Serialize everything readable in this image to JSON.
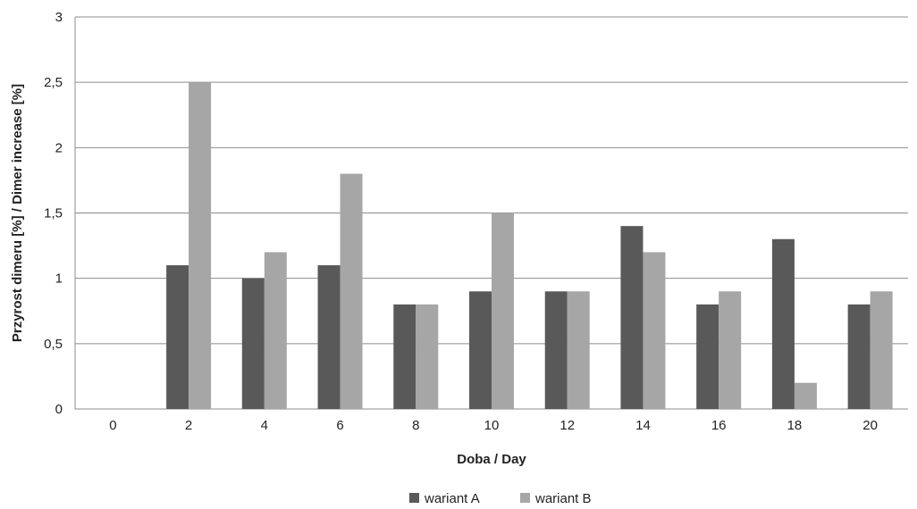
{
  "chart_data": {
    "type": "bar",
    "title": "",
    "xlabel": "Doba / Day",
    "ylabel": "Przyrost  dimeru [%] / Dimer increase [%]",
    "categories": [
      "0",
      "2",
      "4",
      "6",
      "8",
      "10",
      "12",
      "14",
      "16",
      "18",
      "20"
    ],
    "series": [
      {
        "name": "wariant A",
        "color": "#595959",
        "values": [
          0,
          1.1,
          1.0,
          1.1,
          0.8,
          0.9,
          0.9,
          1.4,
          0.8,
          1.3,
          0.8
        ]
      },
      {
        "name": "wariant B",
        "color": "#a6a6a6",
        "values": [
          0,
          2.5,
          1.2,
          1.8,
          0.8,
          1.5,
          0.9,
          1.2,
          0.9,
          0.2,
          0.9
        ]
      }
    ],
    "ylim": [
      0,
      3
    ],
    "yticks": [
      0,
      0.5,
      1,
      1.5,
      2,
      2.5,
      3
    ],
    "ytick_labels": [
      "0",
      "0,5",
      "1",
      "1,5",
      "2",
      "2,5",
      "3"
    ],
    "grid": true,
    "legend_position": "bottom"
  }
}
